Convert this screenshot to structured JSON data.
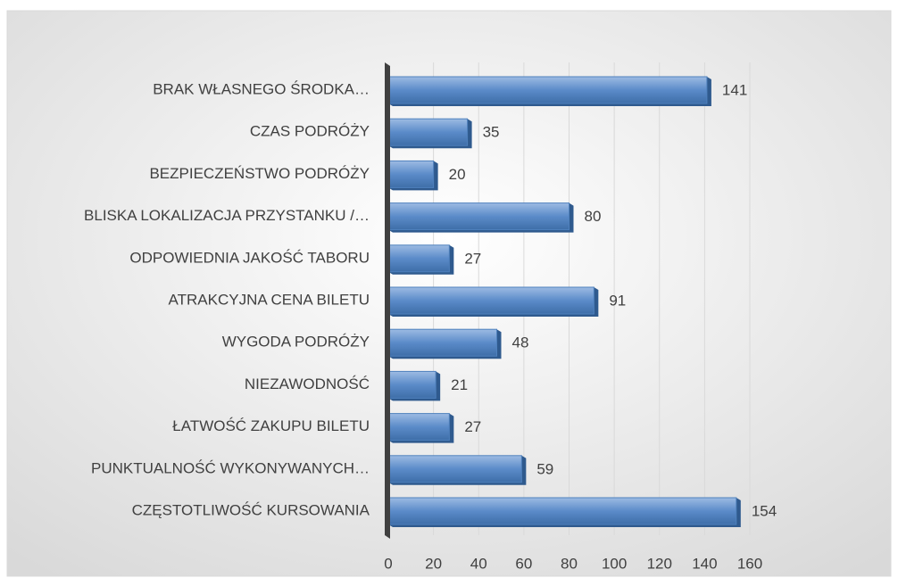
{
  "chart_data": {
    "type": "bar",
    "orientation": "horizontal",
    "categories": [
      "BRAK WŁASNEGO ŚRODKA…",
      "CZAS PODRÓŻY",
      "BEZPIECZEŃSTWO PODRÓŻY",
      "BLISKA LOKALIZACJA PRZYSTANKU /…",
      "ODPOWIEDNIA JAKOŚĆ TABORU",
      "ATRAKCYJNA CENA BILETU",
      "WYGODA PODRÓŻY",
      "NIEZAWODNOŚĆ",
      "ŁATWOŚĆ ZAKUPU BILETU",
      "PUNKTUALNOŚĆ WYKONYWANYCH…",
      "CZĘSTOTLIWOŚĆ KURSOWANIA"
    ],
    "values": [
      141,
      35,
      20,
      80,
      27,
      91,
      48,
      21,
      27,
      59,
      154
    ],
    "color": "#4f81bd",
    "xlim": [
      0,
      160
    ],
    "xticks": [
      0,
      20,
      40,
      60,
      80,
      100,
      120,
      140,
      160
    ],
    "grid": true
  }
}
